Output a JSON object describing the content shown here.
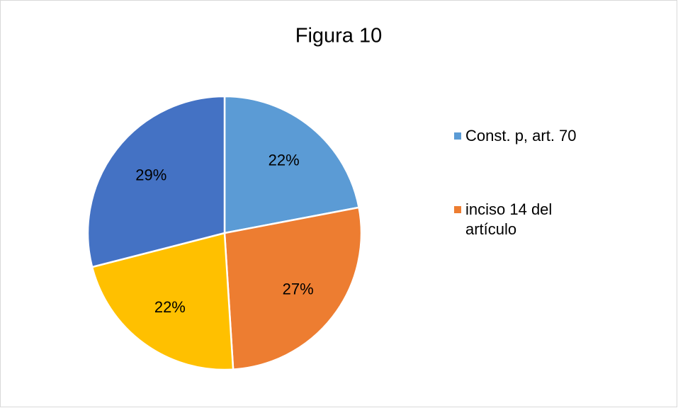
{
  "chart_data": {
    "type": "pie",
    "title": "Figura 10",
    "categories": [
      "Const. p, art. 70",
      "inciso 14 del artículo",
      null,
      null
    ],
    "values": [
      22,
      27,
      22,
      29
    ],
    "value_labels": [
      "22%",
      "27%",
      "22%",
      "29%"
    ],
    "colors": [
      "#5b9bd5",
      "#ed7d31",
      "#ffc000",
      "#4472c4"
    ],
    "legend": "right"
  }
}
